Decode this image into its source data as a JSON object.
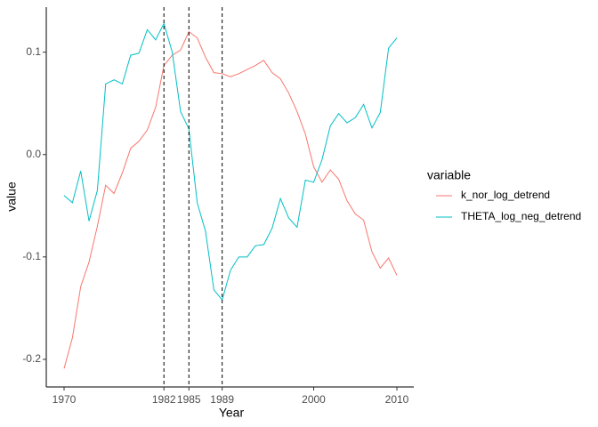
{
  "chart_data": {
    "type": "line",
    "x_label": "Year",
    "y_label": "value",
    "legend_title": "variable",
    "x": [
      1970,
      1971,
      1972,
      1973,
      1974,
      1975,
      1976,
      1977,
      1978,
      1979,
      1980,
      1981,
      1982,
      1983,
      1984,
      1985,
      1986,
      1987,
      1988,
      1989,
      1990,
      1991,
      1992,
      1993,
      1994,
      1995,
      1996,
      1997,
      1998,
      1999,
      2000,
      2001,
      2002,
      2003,
      2004,
      2005,
      2006,
      2007,
      2008,
      2009,
      2010
    ],
    "series": [
      {
        "name": "k_nor_log_detrend",
        "color": "#F8766D",
        "values": [
          -0.209,
          -0.179,
          -0.129,
          -0.105,
          -0.07,
          -0.03,
          -0.038,
          -0.018,
          0.006,
          0.013,
          0.024,
          0.046,
          0.087,
          0.097,
          0.102,
          0.12,
          0.114,
          0.095,
          0.08,
          0.079,
          0.076,
          0.079,
          0.083,
          0.087,
          0.092,
          0.08,
          0.074,
          0.06,
          0.042,
          0.02,
          -0.012,
          -0.027,
          -0.015,
          -0.024,
          -0.045,
          -0.058,
          -0.064,
          -0.095,
          -0.111,
          -0.101,
          -0.118
        ]
      },
      {
        "name": "THETA_log_neg_detrend",
        "color": "#00BFC4",
        "values": [
          -0.04,
          -0.047,
          -0.016,
          -0.065,
          -0.035,
          0.069,
          0.073,
          0.069,
          0.097,
          0.099,
          0.122,
          0.112,
          0.128,
          0.1,
          0.042,
          0.025,
          -0.047,
          -0.075,
          -0.132,
          -0.142,
          -0.113,
          -0.1,
          -0.1,
          -0.089,
          -0.088,
          -0.072,
          -0.043,
          -0.062,
          -0.071,
          -0.025,
          -0.027,
          -0.005,
          0.028,
          0.04,
          0.031,
          0.036,
          0.049,
          0.026,
          0.041,
          0.104,
          0.114
        ]
      }
    ],
    "vlines": [
      1982,
      1985,
      1989
    ],
    "xlim": [
      1967.86,
      2012.03
    ],
    "ylim": [
      -0.227,
      0.144
    ],
    "xticks": [
      1970,
      1982,
      1985,
      1989,
      2000,
      2010
    ],
    "yticks": [
      -0.2,
      -0.1,
      {
        "value": 0,
        "label": "0.0"
      },
      0.1
    ],
    "grid": false,
    "legend": "right"
  }
}
